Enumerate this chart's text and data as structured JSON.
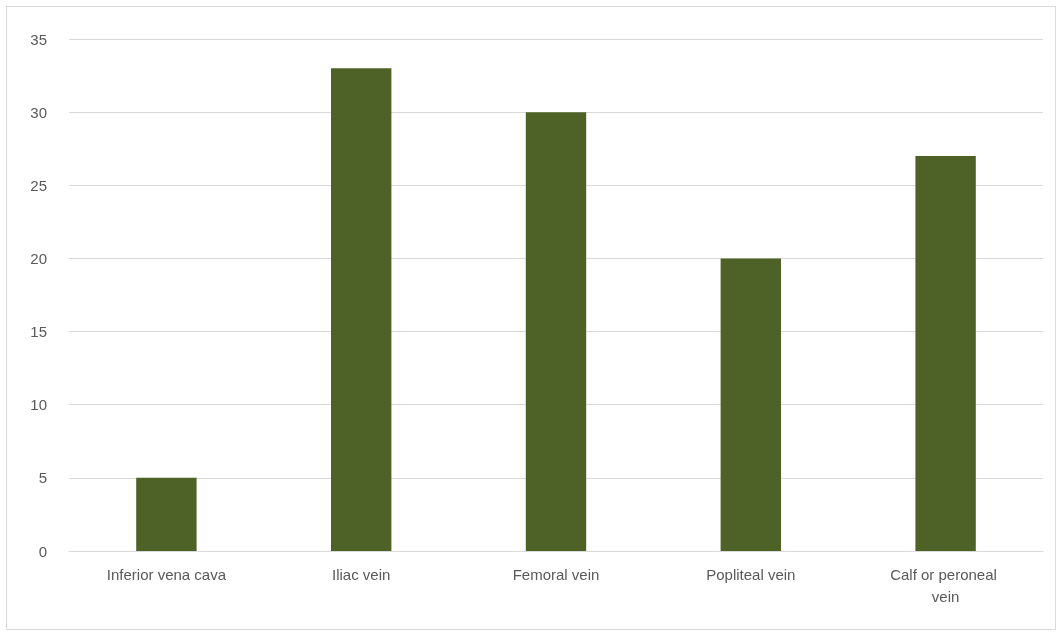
{
  "chart_data": {
    "type": "bar",
    "categories": [
      "Inferior vena cava",
      "Iliac vein",
      "Femoral vein",
      "Popliteal vein",
      "Calf or peroneal vein"
    ],
    "values": [
      5,
      33,
      30,
      20,
      27
    ],
    "color": "#4e6228",
    "ylim": [
      0,
      35
    ],
    "yticks": [
      0,
      5,
      10,
      15,
      20,
      25,
      30,
      35
    ],
    "grid": "y"
  }
}
